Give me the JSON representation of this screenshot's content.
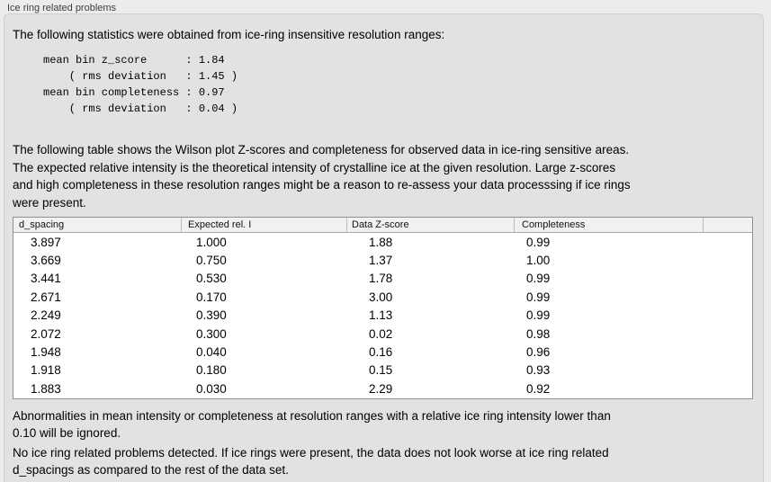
{
  "panel": {
    "title": "Ice ring related problems",
    "intro": "The following statistics were obtained from ice-ring insensitive resolution ranges:",
    "stats_block": "mean bin z_score      : 1.84\n    ( rms deviation   : 1.45 )\nmean bin completeness : 0.97\n    ( rms deviation   : 0.04 )",
    "stats": {
      "mean_bin_z_score": "1.84",
      "z_score_rms_deviation": "1.45",
      "mean_bin_completeness": "0.97",
      "completeness_rms_deviation": "0.04"
    },
    "table_description": "The following table shows the Wilson plot Z-scores and completeness for observed data in ice-ring sensitive areas.\nThe expected relative intensity is the theoretical intensity of crystalline ice at the given resolution. Large z-scores\nand high completeness in these resolution ranges might be a reason to re-assess your data processsing if ice rings\nwere present.",
    "ignore_note": "Abnormalities in mean intensity or completeness at resolution ranges with a relative ice ring intensity lower than\n0.10 will be ignored.",
    "conclusion": "No ice ring related problems detected. If ice rings were present, the data does not look worse at ice ring related\nd_spacings as compared to the rest of the data set."
  },
  "table": {
    "columns": [
      "d_spacing",
      "Expected rel. I",
      "Data Z-score",
      "Completeness",
      ""
    ],
    "rows": [
      [
        "3.897",
        "1.000",
        "1.88",
        "0.99"
      ],
      [
        "3.669",
        "0.750",
        "1.37",
        "1.00"
      ],
      [
        "3.441",
        "0.530",
        "1.78",
        "0.99"
      ],
      [
        "2.671",
        "0.170",
        "3.00",
        "0.99"
      ],
      [
        "2.249",
        "0.390",
        "1.13",
        "0.99"
      ],
      [
        "2.072",
        "0.300",
        "0.02",
        "0.98"
      ],
      [
        "1.948",
        "0.040",
        "0.16",
        "0.96"
      ],
      [
        "1.918",
        "0.180",
        "0.15",
        "0.93"
      ],
      [
        "1.883",
        "0.030",
        "2.29",
        "0.92"
      ]
    ]
  },
  "colors": {
    "page_background": "#ececec",
    "panel_background": "#e2e2e2",
    "panel_border": "#d0cece",
    "table_border": "#8f8f8f",
    "table_header_background": "#f1f1f1"
  }
}
